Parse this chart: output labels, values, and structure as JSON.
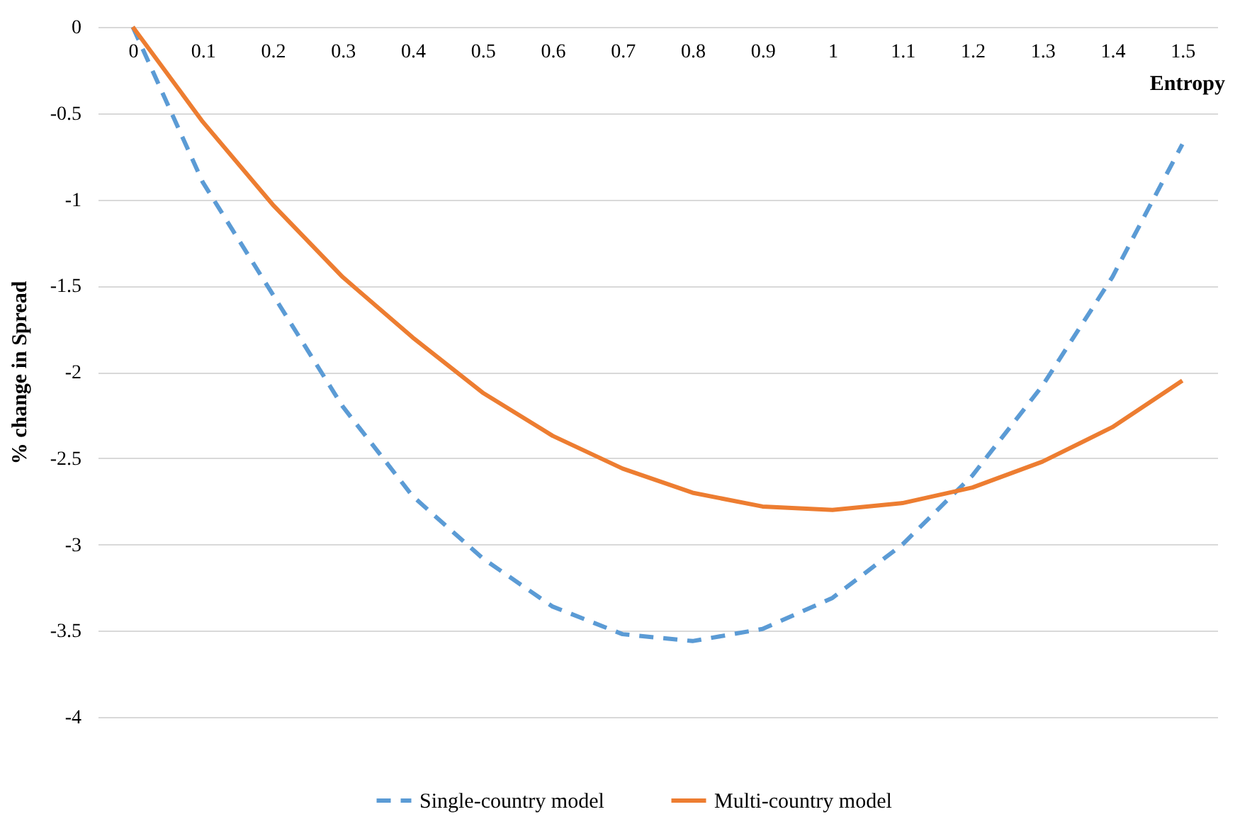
{
  "chart_data": {
    "type": "line",
    "xlabel": "Entropy",
    "ylabel": "% change in Spread",
    "x": [
      0,
      0.1,
      0.2,
      0.3,
      0.4,
      0.5,
      0.6,
      0.7,
      0.8,
      0.9,
      1,
      1.1,
      1.2,
      1.3,
      1.4,
      1.5
    ],
    "series": [
      {
        "name": "Single-country model",
        "color": "#5b9bd5",
        "line_style": "dashed",
        "values": [
          0,
          -0.9,
          -1.55,
          -2.2,
          -2.72,
          -3.08,
          -3.36,
          -3.52,
          -3.56,
          -3.49,
          -3.31,
          -3.0,
          -2.6,
          -2.08,
          -1.45,
          -0.68
        ]
      },
      {
        "name": "Multi-country model",
        "color": "#ed7d31",
        "line_style": "solid",
        "values": [
          0,
          -0.55,
          -1.03,
          -1.45,
          -1.8,
          -2.12,
          -2.37,
          -2.56,
          -2.7,
          -2.78,
          -2.8,
          -2.76,
          -2.67,
          -2.52,
          -2.32,
          -2.05
        ]
      }
    ],
    "xlim": [
      -0.05,
      1.55
    ],
    "xticks": [
      0,
      0.1,
      0.2,
      0.3,
      0.4,
      0.5,
      0.6,
      0.7,
      0.8,
      0.9,
      1,
      1.1,
      1.2,
      1.3,
      1.4,
      1.5
    ],
    "ylim": [
      -4,
      0
    ],
    "yticks": [
      0,
      -0.5,
      -1,
      -1.5,
      -2,
      -2.5,
      -3,
      -3.5,
      -4
    ],
    "grid": "y",
    "legend": "bottom",
    "marker": "none"
  }
}
